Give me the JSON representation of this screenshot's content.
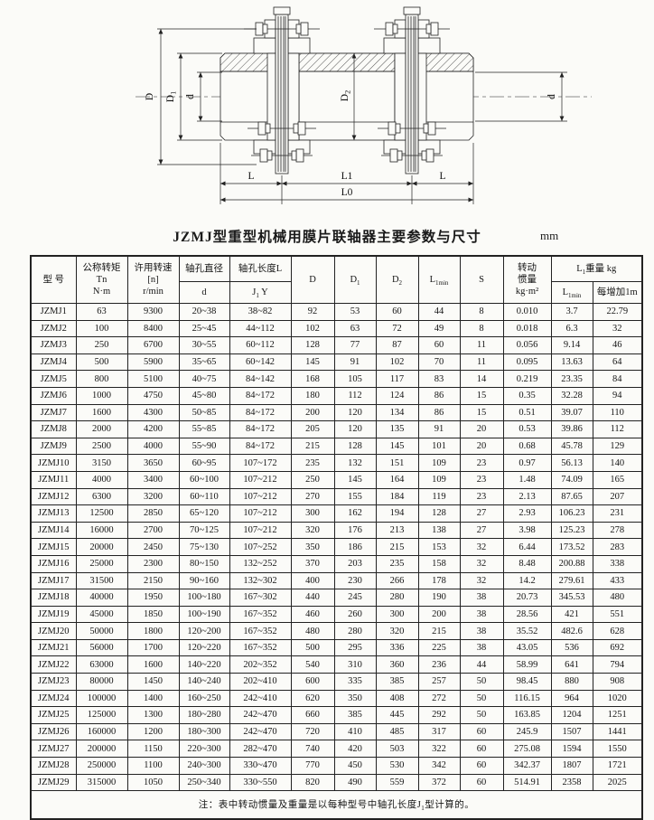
{
  "page": {
    "title": "JZMJ型重型机械用膜片联轴器主要参数与尺寸",
    "unit_label": "mm",
    "note": "注：表中转动惯量及重量是以每种型号中轴孔长度J_{1}型计算的。"
  },
  "diagram": {
    "labels": {
      "D": "D",
      "D1": "D_{1}",
      "D2": "D_{2}",
      "d_left": "d",
      "d_right": "d",
      "L_left": "L",
      "L1": "L1",
      "L_right": "L",
      "L0": "L0"
    }
  },
  "table": {
    "headers": {
      "model": "型 号",
      "torque": "公称转矩\nTn\nN·m",
      "speed": "许用转速\n[n]\nr/min",
      "bore_dia": "轴孔直径",
      "bore_dia_sub": "d",
      "bore_len": "轴孔长度L",
      "bore_len_sub": "J_{1}  Y",
      "D": "D",
      "D1": "D_{1}",
      "D2": "D_{2}",
      "L1min": "L_{1min}",
      "S": "S",
      "inertia": "转动\n惯量\nkg·m²",
      "weight_group": "L_{1}重量  kg",
      "weight_l1min": "L_{1min}",
      "weight_per_m": "每增加1m"
    },
    "rows": [
      [
        "JZMJ1",
        "63",
        "9300",
        "20~38",
        "38~82",
        "92",
        "53",
        "60",
        "44",
        "8",
        "0.010",
        "3.7",
        "22.79"
      ],
      [
        "JZMJ2",
        "100",
        "8400",
        "25~45",
        "44~112",
        "102",
        "63",
        "72",
        "49",
        "8",
        "0.018",
        "6.3",
        "32"
      ],
      [
        "JZMJ3",
        "250",
        "6700",
        "30~55",
        "60~112",
        "128",
        "77",
        "87",
        "60",
        "11",
        "0.056",
        "9.14",
        "46"
      ],
      [
        "JZMJ4",
        "500",
        "5900",
        "35~65",
        "60~142",
        "145",
        "91",
        "102",
        "70",
        "11",
        "0.095",
        "13.63",
        "64"
      ],
      [
        "JZMJ5",
        "800",
        "5100",
        "40~75",
        "84~142",
        "168",
        "105",
        "117",
        "83",
        "14",
        "0.219",
        "23.35",
        "84"
      ],
      [
        "JZMJ6",
        "1000",
        "4750",
        "45~80",
        "84~172",
        "180",
        "112",
        "124",
        "86",
        "15",
        "0.35",
        "32.28",
        "94"
      ],
      [
        "JZMJ7",
        "1600",
        "4300",
        "50~85",
        "84~172",
        "200",
        "120",
        "134",
        "86",
        "15",
        "0.51",
        "39.07",
        "110"
      ],
      [
        "JZMJ8",
        "2000",
        "4200",
        "55~85",
        "84~172",
        "205",
        "120",
        "135",
        "91",
        "20",
        "0.53",
        "39.86",
        "112"
      ],
      [
        "JZMJ9",
        "2500",
        "4000",
        "55~90",
        "84~172",
        "215",
        "128",
        "145",
        "101",
        "20",
        "0.68",
        "45.78",
        "129"
      ],
      [
        "JZMJ10",
        "3150",
        "3650",
        "60~95",
        "107~172",
        "235",
        "132",
        "151",
        "109",
        "23",
        "0.97",
        "56.13",
        "140"
      ],
      [
        "JZMJ11",
        "4000",
        "3400",
        "60~100",
        "107~212",
        "250",
        "145",
        "164",
        "109",
        "23",
        "1.48",
        "74.09",
        "165"
      ],
      [
        "JZMJ12",
        "6300",
        "3200",
        "60~110",
        "107~212",
        "270",
        "155",
        "184",
        "119",
        "23",
        "2.13",
        "87.65",
        "207"
      ],
      [
        "JZMJ13",
        "12500",
        "2850",
        "65~120",
        "107~212",
        "300",
        "162",
        "194",
        "128",
        "27",
        "2.93",
        "106.23",
        "231"
      ],
      [
        "JZMJ14",
        "16000",
        "2700",
        "70~125",
        "107~212",
        "320",
        "176",
        "213",
        "138",
        "27",
        "3.98",
        "125.23",
        "278"
      ],
      [
        "JZMJ15",
        "20000",
        "2450",
        "75~130",
        "107~252",
        "350",
        "186",
        "215",
        "153",
        "32",
        "6.44",
        "173.52",
        "283"
      ],
      [
        "JZMJ16",
        "25000",
        "2300",
        "80~150",
        "132~252",
        "370",
        "203",
        "235",
        "158",
        "32",
        "8.48",
        "200.88",
        "338"
      ],
      [
        "JZMJ17",
        "31500",
        "2150",
        "90~160",
        "132~302",
        "400",
        "230",
        "266",
        "178",
        "32",
        "14.2",
        "279.61",
        "433"
      ],
      [
        "JZMJ18",
        "40000",
        "1950",
        "100~180",
        "167~302",
        "440",
        "245",
        "280",
        "190",
        "38",
        "20.73",
        "345.53",
        "480"
      ],
      [
        "JZMJ19",
        "45000",
        "1850",
        "100~190",
        "167~352",
        "460",
        "260",
        "300",
        "200",
        "38",
        "28.56",
        "421",
        "551"
      ],
      [
        "JZMJ20",
        "50000",
        "1800",
        "120~200",
        "167~352",
        "480",
        "280",
        "320",
        "215",
        "38",
        "35.52",
        "482.6",
        "628"
      ],
      [
        "JZMJ21",
        "56000",
        "1700",
        "120~220",
        "167~352",
        "500",
        "295",
        "336",
        "225",
        "38",
        "43.05",
        "536",
        "692"
      ],
      [
        "JZMJ22",
        "63000",
        "1600",
        "140~220",
        "202~352",
        "540",
        "310",
        "360",
        "236",
        "44",
        "58.99",
        "641",
        "794"
      ],
      [
        "JZMJ23",
        "80000",
        "1450",
        "140~240",
        "202~410",
        "600",
        "335",
        "385",
        "257",
        "50",
        "98.45",
        "880",
        "908"
      ],
      [
        "JZMJ24",
        "100000",
        "1400",
        "160~250",
        "242~410",
        "620",
        "350",
        "408",
        "272",
        "50",
        "116.15",
        "964",
        "1020"
      ],
      [
        "JZMJ25",
        "125000",
        "1300",
        "180~280",
        "242~470",
        "660",
        "385",
        "445",
        "292",
        "50",
        "163.85",
        "1204",
        "1251"
      ],
      [
        "JZMJ26",
        "160000",
        "1200",
        "180~300",
        "242~470",
        "720",
        "410",
        "485",
        "317",
        "60",
        "245.9",
        "1507",
        "1441"
      ],
      [
        "JZMJ27",
        "200000",
        "1150",
        "220~300",
        "282~470",
        "740",
        "420",
        "503",
        "322",
        "60",
        "275.08",
        "1594",
        "1550"
      ],
      [
        "JZMJ28",
        "250000",
        "1100",
        "240~300",
        "330~470",
        "770",
        "450",
        "530",
        "342",
        "60",
        "342.37",
        "1807",
        "1721"
      ],
      [
        "JZMJ29",
        "315000",
        "1050",
        "250~340",
        "330~550",
        "820",
        "490",
        "559",
        "372",
        "60",
        "514.91",
        "2358",
        "2025"
      ]
    ]
  }
}
